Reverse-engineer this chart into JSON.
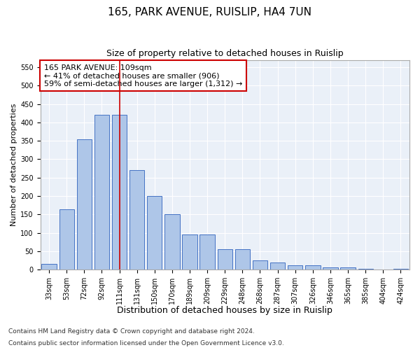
{
  "title1": "165, PARK AVENUE, RUISLIP, HA4 7UN",
  "title2": "Size of property relative to detached houses in Ruislip",
  "xlabel": "Distribution of detached houses by size in Ruislip",
  "ylabel": "Number of detached properties",
  "categories": [
    "33sqm",
    "53sqm",
    "72sqm",
    "92sqm",
    "111sqm",
    "131sqm",
    "150sqm",
    "170sqm",
    "189sqm",
    "209sqm",
    "229sqm",
    "248sqm",
    "268sqm",
    "287sqm",
    "307sqm",
    "326sqm",
    "346sqm",
    "365sqm",
    "385sqm",
    "404sqm",
    "424sqm"
  ],
  "values": [
    15,
    163,
    355,
    420,
    420,
    270,
    200,
    150,
    95,
    95,
    55,
    55,
    25,
    20,
    12,
    12,
    5,
    5,
    3,
    1,
    2
  ],
  "bar_color": "#aec6e8",
  "bar_edge_color": "#4472c4",
  "bg_color": "#eaf0f8",
  "vline_x_index": 4,
  "vline_color": "#cc0000",
  "annotation_line1": "165 PARK AVENUE: 109sqm",
  "annotation_line2": "← 41% of detached houses are smaller (906)",
  "annotation_line3": "59% of semi-detached houses are larger (1,312) →",
  "annotation_box_color": "#cc0000",
  "ylim": [
    0,
    570
  ],
  "yticks": [
    0,
    50,
    100,
    150,
    200,
    250,
    300,
    350,
    400,
    450,
    500,
    550
  ],
  "footnote1": "Contains HM Land Registry data © Crown copyright and database right 2024.",
  "footnote2": "Contains public sector information licensed under the Open Government Licence v3.0.",
  "title1_fontsize": 11,
  "title2_fontsize": 9,
  "xlabel_fontsize": 9,
  "ylabel_fontsize": 8,
  "tick_fontsize": 7,
  "annotation_fontsize": 8,
  "footnote_fontsize": 6.5
}
